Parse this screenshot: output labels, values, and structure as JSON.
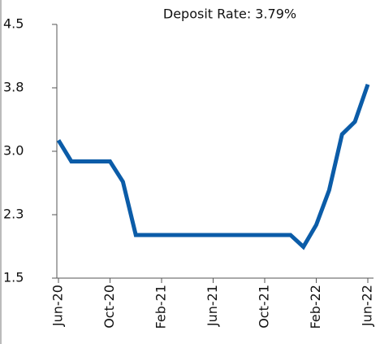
{
  "chart_data": {
    "type": "line",
    "title": "Deposit Rate: 3.79%",
    "categories": [
      "Jun-20",
      null,
      null,
      null,
      "Oct-20",
      null,
      null,
      null,
      "Feb-21",
      null,
      null,
      null,
      "Jun-21",
      null,
      null,
      null,
      "Oct-21",
      null,
      null,
      null,
      "Feb-22",
      null,
      null,
      null,
      "Jun-22"
    ],
    "series": [
      {
        "name": "Deposit Rate",
        "color": "#0b5ca8",
        "values": [
          3.13,
          2.88,
          2.88,
          2.88,
          2.88,
          2.64,
          2.01,
          2.01,
          2.01,
          2.01,
          2.01,
          2.01,
          2.01,
          2.01,
          2.01,
          2.01,
          2.01,
          2.01,
          2.01,
          1.87,
          2.13,
          2.54,
          3.2,
          3.35,
          3.79
        ]
      }
    ],
    "ylim": [
      1.5,
      4.5
    ],
    "yticks": [
      1.5,
      {
        "value": 2.25,
        "label": "2.3"
      },
      {
        "value": 3,
        "label": "3.0"
      },
      {
        "value": 3.75,
        "label": "3.8"
      },
      4.5
    ],
    "grid": false
  }
}
